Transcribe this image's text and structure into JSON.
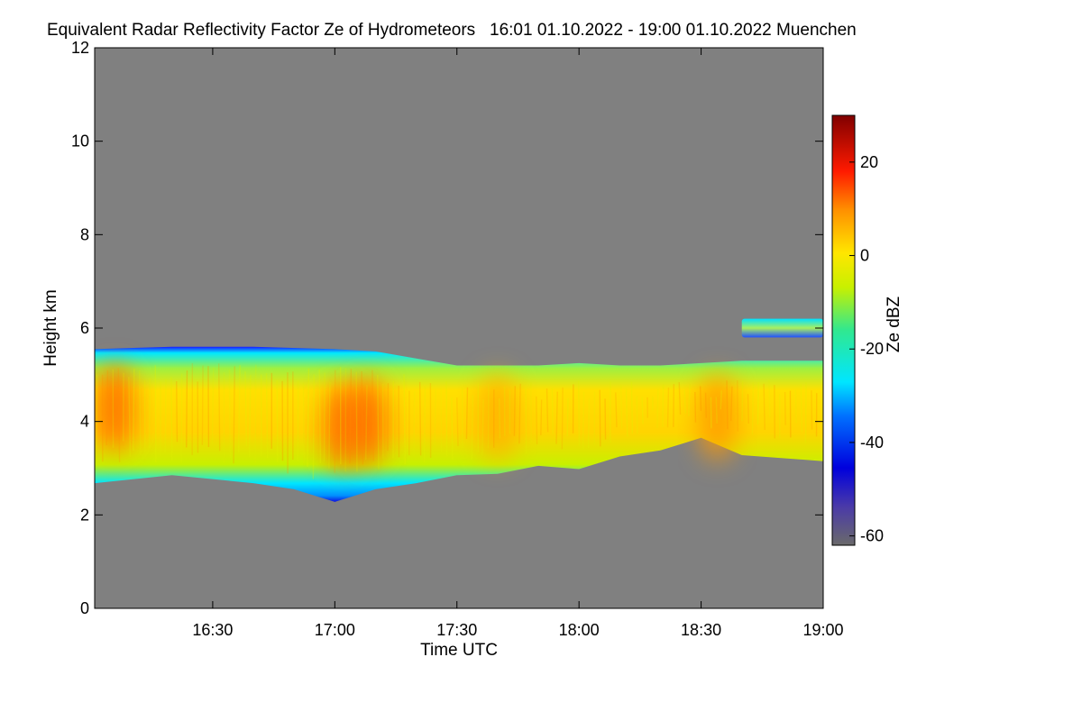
{
  "chart_data": {
    "type": "heatmap",
    "title": "Equivalent Radar Reflectivity Factor Ze of Hydrometeors   16:01 01.10.2022 - 19:00 01.10.2022 Muenchen",
    "xlabel": "Time UTC",
    "ylabel": "Height km",
    "x_range_min": [
      961,
      1140
    ],
    "xlim_labels": [
      "16:01",
      "19:00"
    ],
    "ylim": [
      0,
      12
    ],
    "x_ticks": [
      {
        "label": "16:30",
        "minute": 990
      },
      {
        "label": "17:00",
        "minute": 1020
      },
      {
        "label": "17:30",
        "minute": 1050
      },
      {
        "label": "18:00",
        "minute": 1080
      },
      {
        "label": "18:30",
        "minute": 1110
      },
      {
        "label": "19:00",
        "minute": 1140
      }
    ],
    "y_ticks": [
      0,
      2,
      4,
      6,
      8,
      10,
      12
    ],
    "colorbar": {
      "label": "Ze dBZ",
      "range": [
        -62,
        30
      ],
      "ticks": [
        20,
        0,
        -20,
        -40,
        -60
      ]
    },
    "background_color": "#808080",
    "cloud_layer": {
      "top_km": [
        [
          961,
          5.55
        ],
        [
          980,
          5.6
        ],
        [
          1000,
          5.6
        ],
        [
          1020,
          5.55
        ],
        [
          1030,
          5.5
        ],
        [
          1040,
          5.35
        ],
        [
          1050,
          5.2
        ],
        [
          1060,
          5.2
        ],
        [
          1070,
          5.2
        ],
        [
          1080,
          5.25
        ],
        [
          1090,
          5.2
        ],
        [
          1100,
          5.2
        ],
        [
          1110,
          5.25
        ],
        [
          1120,
          5.3
        ],
        [
          1140,
          5.3
        ]
      ],
      "base_km": [
        [
          961,
          2.8
        ],
        [
          980,
          2.8
        ],
        [
          1000,
          2.8
        ],
        [
          1010,
          2.5
        ],
        [
          1020,
          2.4
        ],
        [
          1030,
          2.5
        ],
        [
          1040,
          2.8
        ],
        [
          1050,
          2.8
        ],
        [
          1060,
          3.0
        ],
        [
          1070,
          3.0
        ],
        [
          1080,
          3.1
        ],
        [
          1090,
          3.2
        ],
        [
          1100,
          3.5
        ],
        [
          1110,
          3.6
        ],
        [
          1120,
          3.4
        ],
        [
          1140,
          3.1
        ]
      ]
    },
    "upper_layer": {
      "x_min": [
        1120,
        1140
      ],
      "top_km": 6.2,
      "base_km": 5.8
    },
    "strong_cores": [
      {
        "minute": 966,
        "height_km": 4.3,
        "ze_dbz": 10
      },
      {
        "minute": 1022,
        "height_km": 3.9,
        "ze_dbz": 12
      },
      {
        "minute": 1028,
        "height_km": 4.0,
        "ze_dbz": 10
      },
      {
        "minute": 1060,
        "height_km": 4.1,
        "ze_dbz": 5
      },
      {
        "minute": 1114,
        "height_km": 4.1,
        "ze_dbz": 6
      }
    ]
  }
}
